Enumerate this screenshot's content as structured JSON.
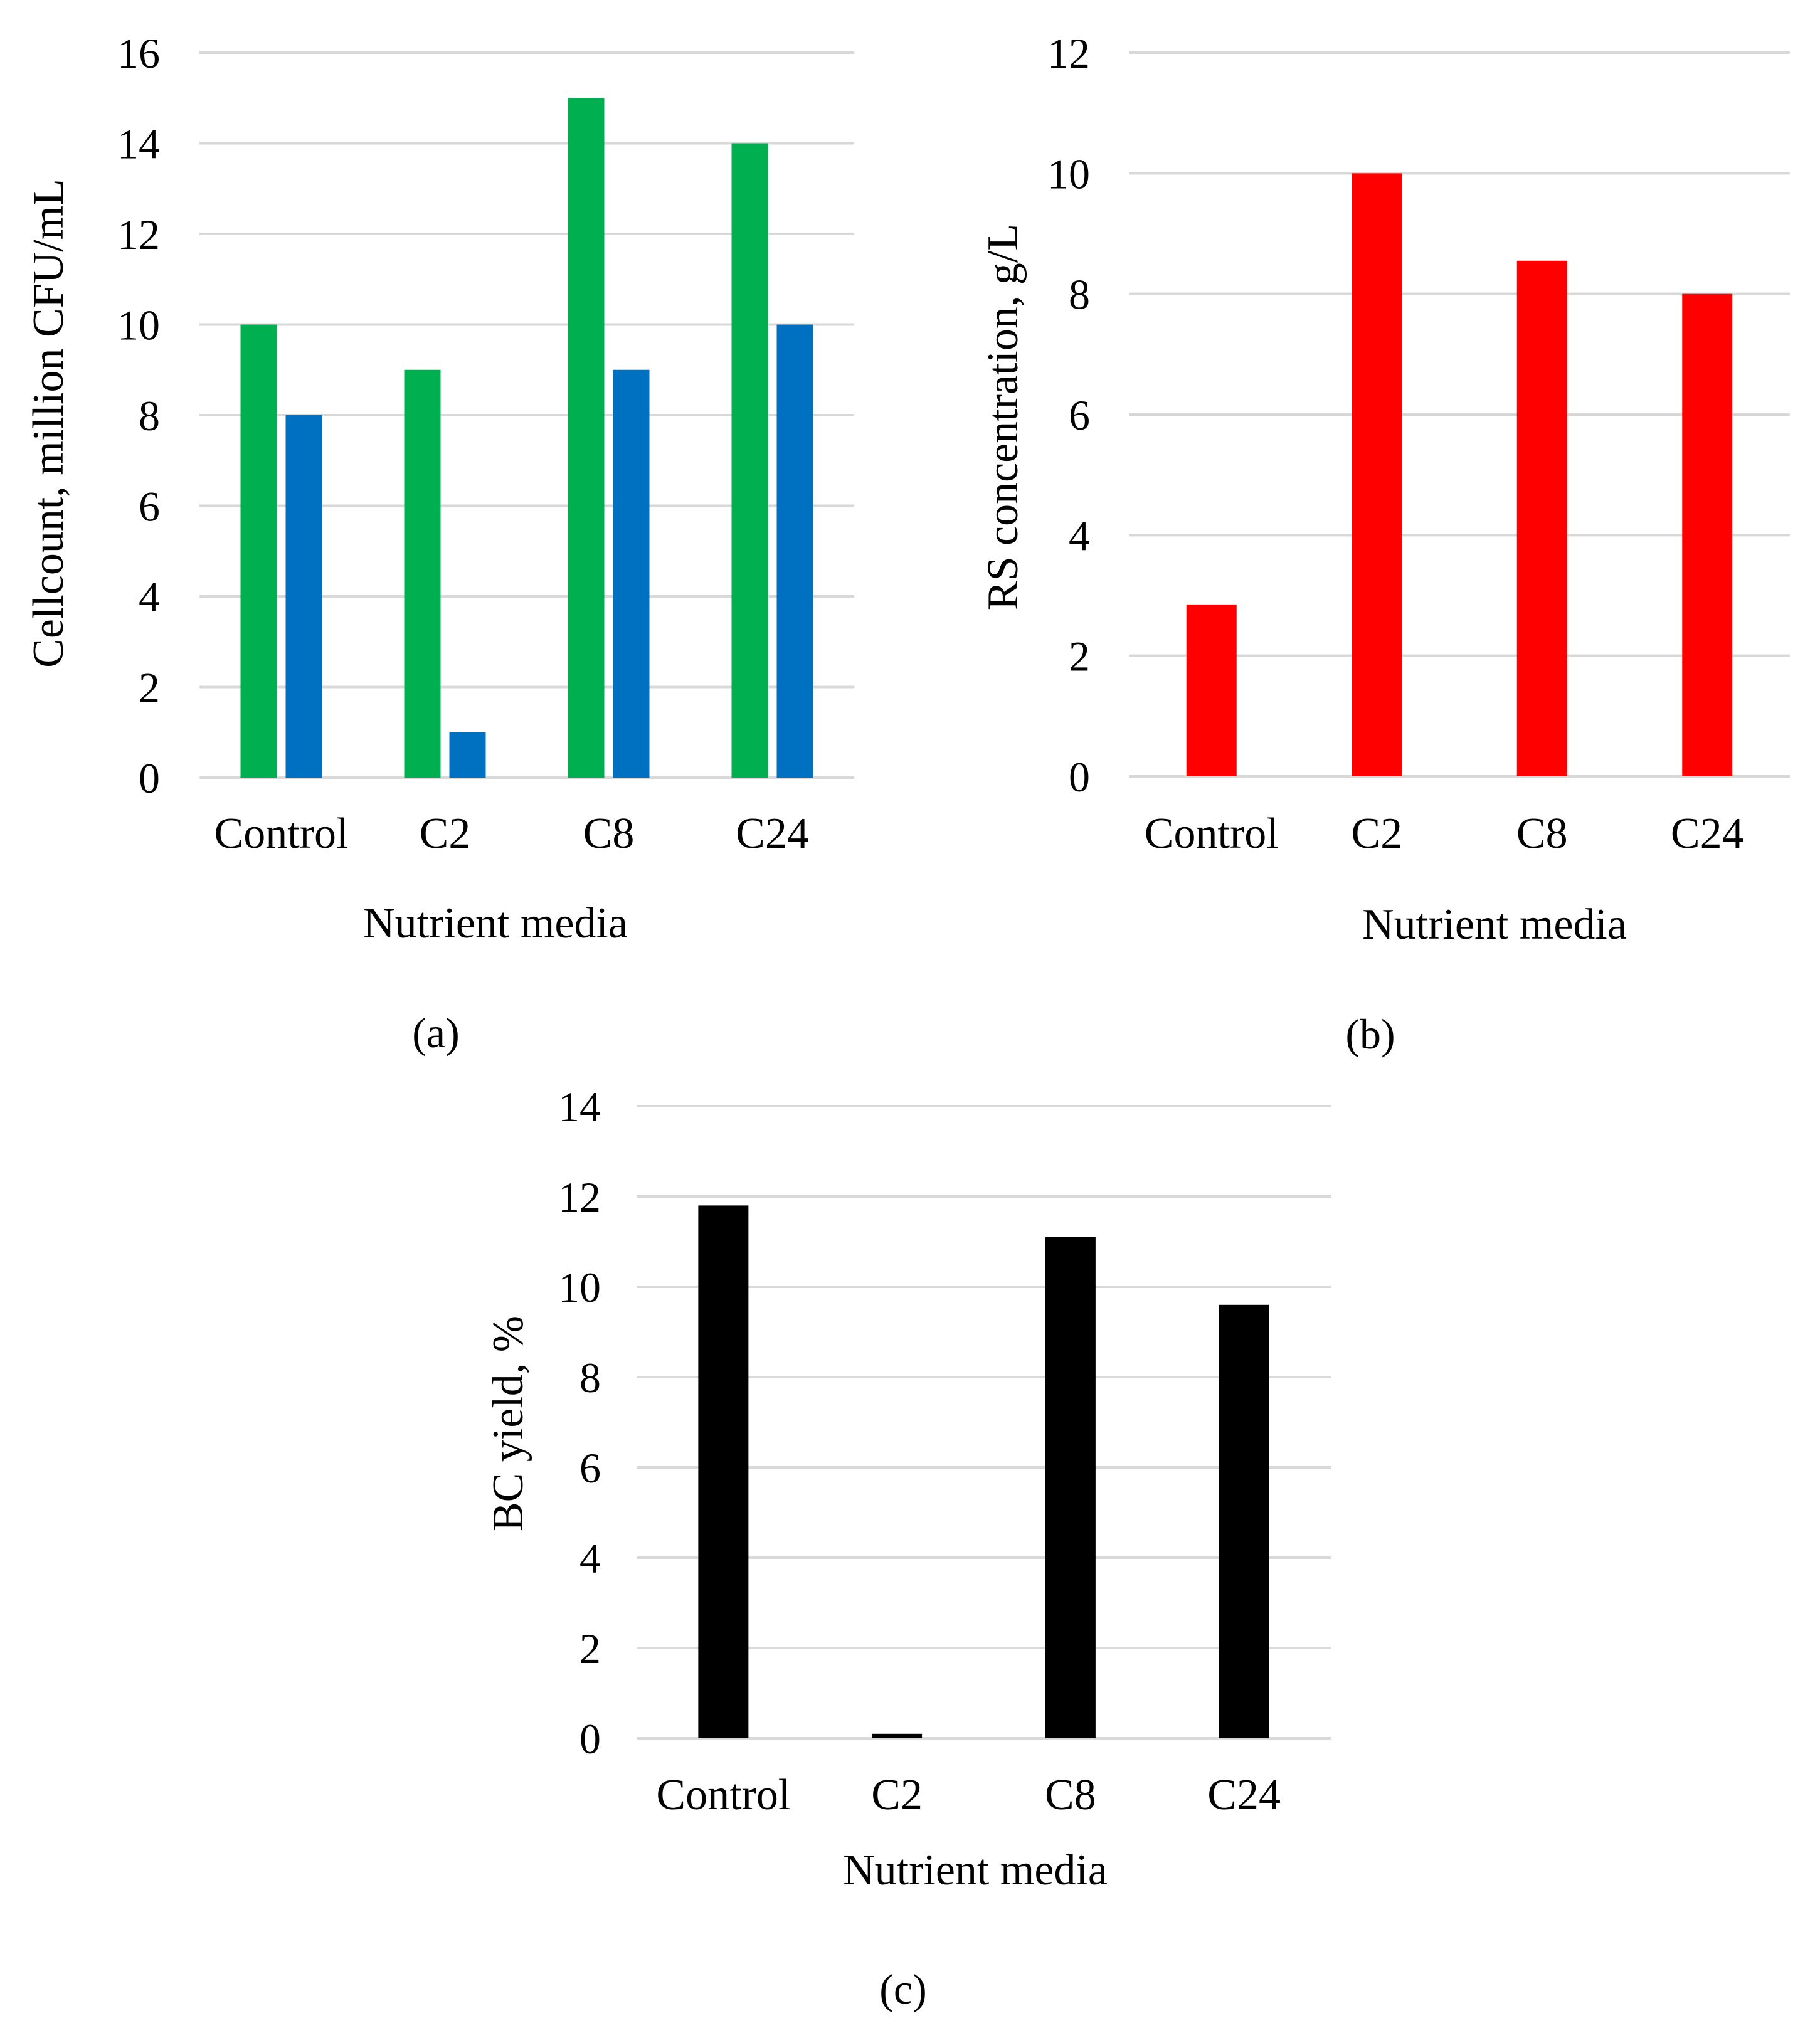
{
  "chart_data": [
    {
      "id": "a",
      "type": "bar",
      "panel_label": "(a)",
      "title": "",
      "xlabel": "Nutrient media",
      "ylabel": "Cellcount, million CFU/mL",
      "categories": [
        "Control",
        "C2",
        "C8",
        "C24"
      ],
      "series": [
        {
          "name": "series 1",
          "color": "#00b050",
          "values": [
            10,
            9,
            15,
            14
          ]
        },
        {
          "name": "series 2",
          "color": "#0070c0",
          "values": [
            8,
            1,
            9,
            10
          ]
        }
      ],
      "ylim": [
        0,
        16
      ],
      "yticks": [
        0,
        2,
        4,
        6,
        8,
        10,
        12,
        14,
        16
      ],
      "grid": true,
      "legend": "none"
    },
    {
      "id": "b",
      "type": "bar",
      "panel_label": "(b)",
      "title": "",
      "xlabel": "Nutrient media",
      "ylabel": "RS concentration, g/L",
      "categories": [
        "Control",
        "C2",
        "C8",
        "C24"
      ],
      "series": [
        {
          "name": "series 1",
          "color": "#ff0000",
          "values": [
            2.85,
            10.0,
            8.55,
            8.0
          ]
        }
      ],
      "ylim": [
        0,
        12
      ],
      "yticks": [
        0,
        2,
        4,
        6,
        8,
        10,
        12
      ],
      "grid": true,
      "legend": "none"
    },
    {
      "id": "c",
      "type": "bar",
      "panel_label": "(c)",
      "title": "",
      "xlabel": "Nutrient media",
      "ylabel": "BC yield, %",
      "categories": [
        "Control",
        "C2",
        "C8",
        "C24"
      ],
      "series": [
        {
          "name": "series 1",
          "color": "#000000",
          "values": [
            11.8,
            0.1,
            11.1,
            9.6
          ]
        }
      ],
      "ylim": [
        0,
        14
      ],
      "yticks": [
        0,
        2,
        4,
        6,
        8,
        10,
        12,
        14
      ],
      "grid": true,
      "legend": "none"
    }
  ]
}
